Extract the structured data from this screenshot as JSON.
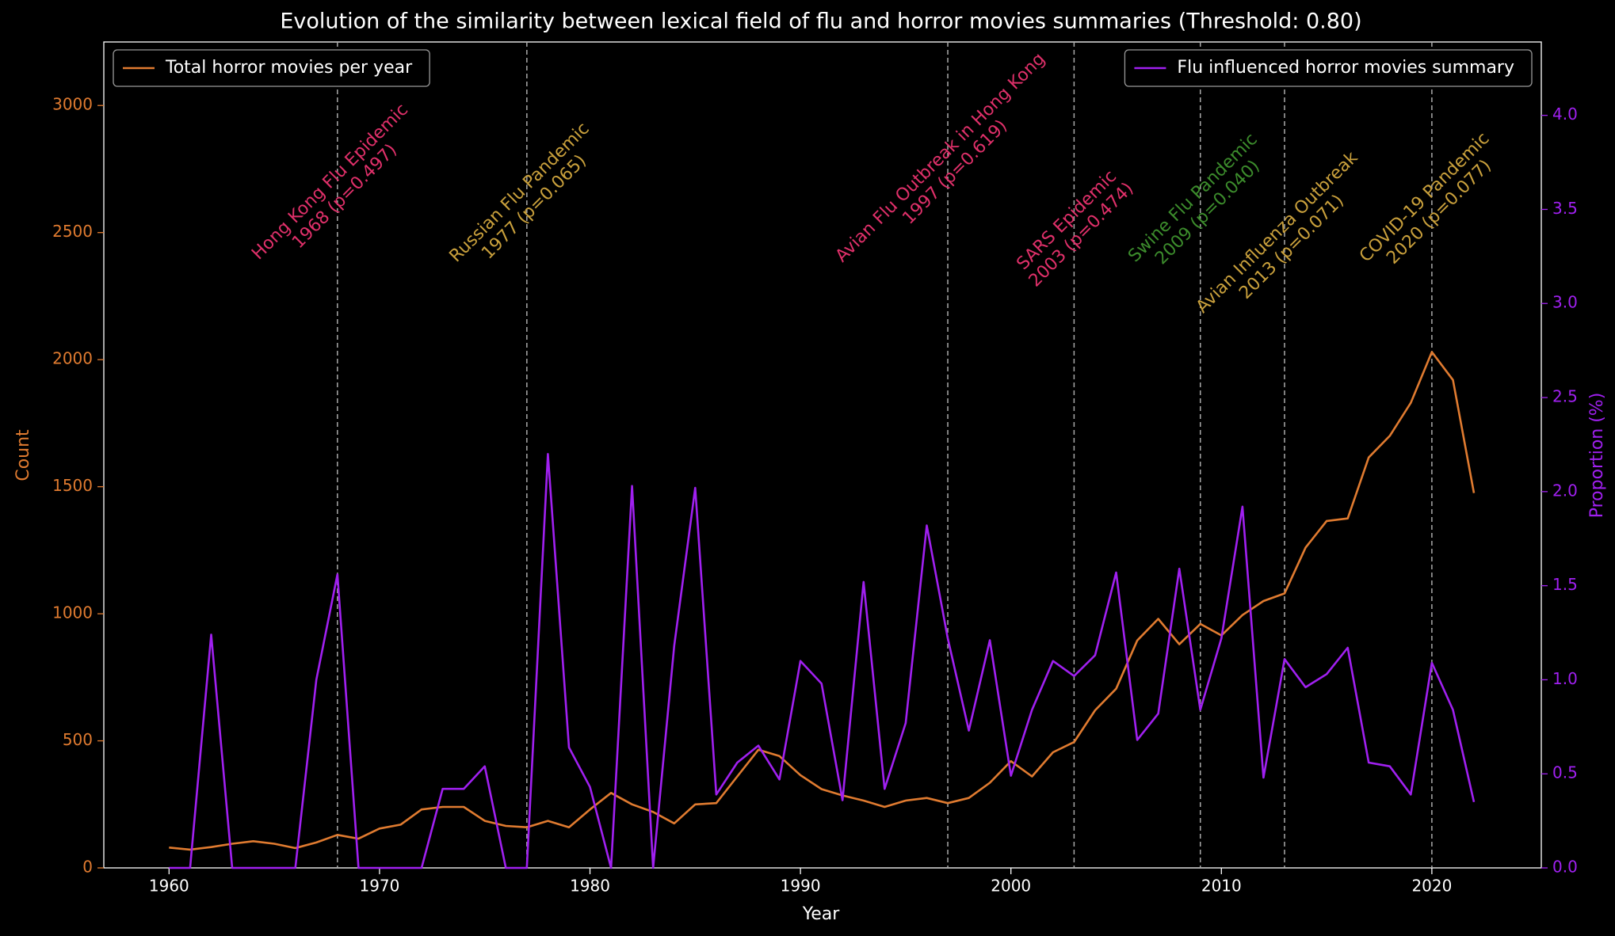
{
  "chart_data": {
    "type": "line",
    "title": "Evolution of the similarity between lexical field of flu and horror movies summaries (Threshold: 0.80)",
    "x_label": "Year",
    "y_label": "Count",
    "y2_label": "Proportion (%)",
    "x": [
      1960,
      1961,
      1962,
      1963,
      1964,
      1965,
      1966,
      1967,
      1968,
      1969,
      1970,
      1971,
      1972,
      1973,
      1974,
      1975,
      1976,
      1977,
      1978,
      1979,
      1980,
      1981,
      1982,
      1983,
      1984,
      1985,
      1986,
      1987,
      1988,
      1989,
      1990,
      1991,
      1992,
      1993,
      1994,
      1995,
      1996,
      1997,
      1998,
      1999,
      2000,
      2001,
      2002,
      2003,
      2004,
      2005,
      2006,
      2007,
      2008,
      2009,
      2010,
      2011,
      2012,
      2013,
      2014,
      2015,
      2016,
      2017,
      2018,
      2019,
      2020,
      2021,
      2022
    ],
    "series": [
      {
        "name": "Total horror movies per year",
        "color": "#e07b30",
        "axis": "y",
        "values": [
          80,
          72,
          82,
          95,
          105,
          95,
          78,
          100,
          130,
          115,
          155,
          170,
          230,
          240,
          240,
          185,
          165,
          160,
          185,
          160,
          230,
          295,
          250,
          220,
          175,
          250,
          255,
          360,
          465,
          440,
          365,
          310,
          285,
          265,
          240,
          265,
          275,
          255,
          275,
          335,
          420,
          360,
          455,
          495,
          620,
          705,
          895,
          980,
          880,
          960,
          915,
          995,
          1050,
          1080,
          1260,
          1365,
          1375,
          1615,
          1700,
          1830,
          2030,
          1920,
          1475
        ]
      },
      {
        "name": "Flu influenced horror movies summary",
        "color": "#a020f0",
        "axis": "y2",
        "values": [
          0,
          0,
          1.24,
          0,
          0,
          0,
          0,
          1.0,
          1.56,
          0,
          0,
          0,
          0,
          0.42,
          0.42,
          0.54,
          0,
          0,
          2.2,
          0.64,
          0.43,
          0,
          2.03,
          0,
          1.18,
          2.02,
          0.39,
          0.56,
          0.65,
          0.47,
          1.1,
          0.98,
          0.36,
          1.52,
          0.42,
          0.77,
          1.82,
          1.22,
          0.73,
          1.21,
          0.49,
          0.84,
          1.1,
          1.02,
          1.13,
          1.57,
          0.68,
          0.82,
          1.59,
          0.84,
          1.22,
          1.92,
          0.48,
          1.11,
          0.96,
          1.03,
          1.17,
          0.56,
          0.54,
          0.39,
          1.09,
          0.84,
          0.35
        ]
      }
    ],
    "xlim": [
      1956.9,
      2025.2
    ],
    "xticks": [
      1960,
      1970,
      1980,
      1990,
      2000,
      2010,
      2020
    ],
    "ylim": [
      0,
      3250
    ],
    "yticks": [
      0,
      500,
      1000,
      1500,
      2000,
      2500,
      3000
    ],
    "y2lim": [
      0,
      4.39
    ],
    "y2ticks": [
      {
        "value": 0,
        "label": "0.0"
      },
      0.5,
      {
        "value": 1,
        "label": "1.0"
      },
      1.5,
      {
        "value": 2,
        "label": "2.0"
      },
      2.5,
      {
        "value": 3,
        "label": "3.0"
      },
      3.5,
      {
        "value": 4,
        "label": "4.0"
      }
    ],
    "annotations": [
      {
        "x": 1968,
        "y": 2320,
        "lines": [
          "Hong Kong Flu Epidemic",
          "1968 (p=0.497)"
        ],
        "color": "#e0306a"
      },
      {
        "x": 1977,
        "y": 2310,
        "lines": [
          "Russian Flu Pandemic",
          "1977 (p=0.065)"
        ],
        "color": "#c9a03c"
      },
      {
        "x": 1997,
        "y": 2310,
        "lines": [
          "Avian Flu Outbreak in Hong Kong",
          "1997 (p=0.619)"
        ],
        "color": "#e0306a"
      },
      {
        "x": 2003,
        "y": 2270,
        "lines": [
          "SARS Epidemic",
          "2003 (p=0.474)"
        ],
        "color": "#e0306a"
      },
      {
        "x": 2009,
        "y": 2310,
        "lines": [
          "Swine Flu Pandemic",
          "2009 (p=0.040)"
        ],
        "color": "#3c8c2c"
      },
      {
        "x": 2013,
        "y": 2110,
        "lines": [
          "Avian Influenza Outbreak",
          "2013 (p=0.071)"
        ],
        "color": "#c9a03c"
      },
      {
        "x": 2020,
        "y": 2310,
        "lines": [
          "COVID-19 Pandemic",
          "2020 (p=0.077)"
        ],
        "color": "#c9a03c"
      }
    ],
    "legends": [
      "upper left",
      "upper right"
    ]
  }
}
